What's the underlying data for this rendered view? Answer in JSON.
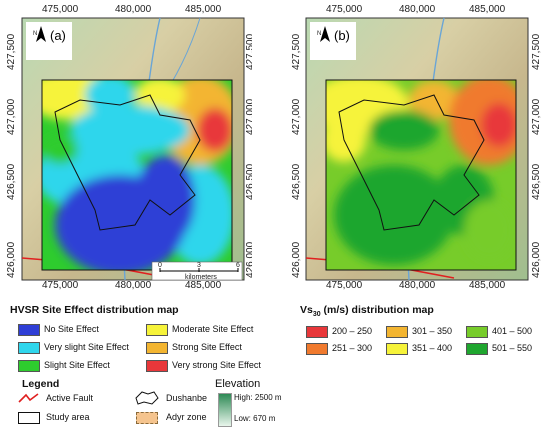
{
  "map_a": {
    "panel_label": "(a)",
    "north_arrow_label": "N",
    "x_ticks": [
      "475,000",
      "480,000",
      "485,000"
    ],
    "y_ticks": [
      "427,500",
      "427,000",
      "426,500",
      "426,000"
    ],
    "scale_bar": {
      "ticks": [
        "0",
        "3",
        "6"
      ],
      "unit": "kilometers"
    }
  },
  "map_b": {
    "panel_label": "(b)",
    "north_arrow_label": "N",
    "x_ticks": [
      "475,000",
      "480,000",
      "485,000"
    ],
    "y_ticks": [
      "427,500",
      "427,000",
      "426,500",
      "426,000"
    ]
  },
  "hvsr_legend": {
    "title": "HVSR Site Effect distribution map",
    "items": [
      {
        "label": "No Site Effect",
        "color": "#2f3fd6"
      },
      {
        "label": "Moderate Site Effect",
        "color": "#f6f33a"
      },
      {
        "label": "Very slight Site Effect",
        "color": "#2fd6ec"
      },
      {
        "label": "Strong Site Effect",
        "color": "#f3b531"
      },
      {
        "label": "Slight Site Effect",
        "color": "#2ecc2e"
      },
      {
        "label": "Very strong Site Effect",
        "color": "#e8373a"
      }
    ]
  },
  "vs_legend": {
    "title_prefix": "Vs",
    "title_sub": "30",
    "title_suffix": " (m/s) distribution map",
    "items": [
      {
        "label": "200 – 250",
        "color": "#e8373a"
      },
      {
        "label": "301 – 350",
        "color": "#f3b531"
      },
      {
        "label": "401 – 500",
        "color": "#77cc2a"
      },
      {
        "label": "251 – 300",
        "color": "#f07a2e"
      },
      {
        "label": "351 – 400",
        "color": "#f6f33a"
      },
      {
        "label": "501 – 550",
        "color": "#1fa62f"
      }
    ]
  },
  "general_legend": {
    "title": "Legend",
    "active_fault": "Active Fault",
    "study_area": "Study area",
    "dushanbe": "Dushanbe",
    "adyr_zone": "Adyr zone",
    "elevation": {
      "title": "Elevation",
      "high": "High: 2500 m",
      "low": "Low: 670 m"
    }
  }
}
